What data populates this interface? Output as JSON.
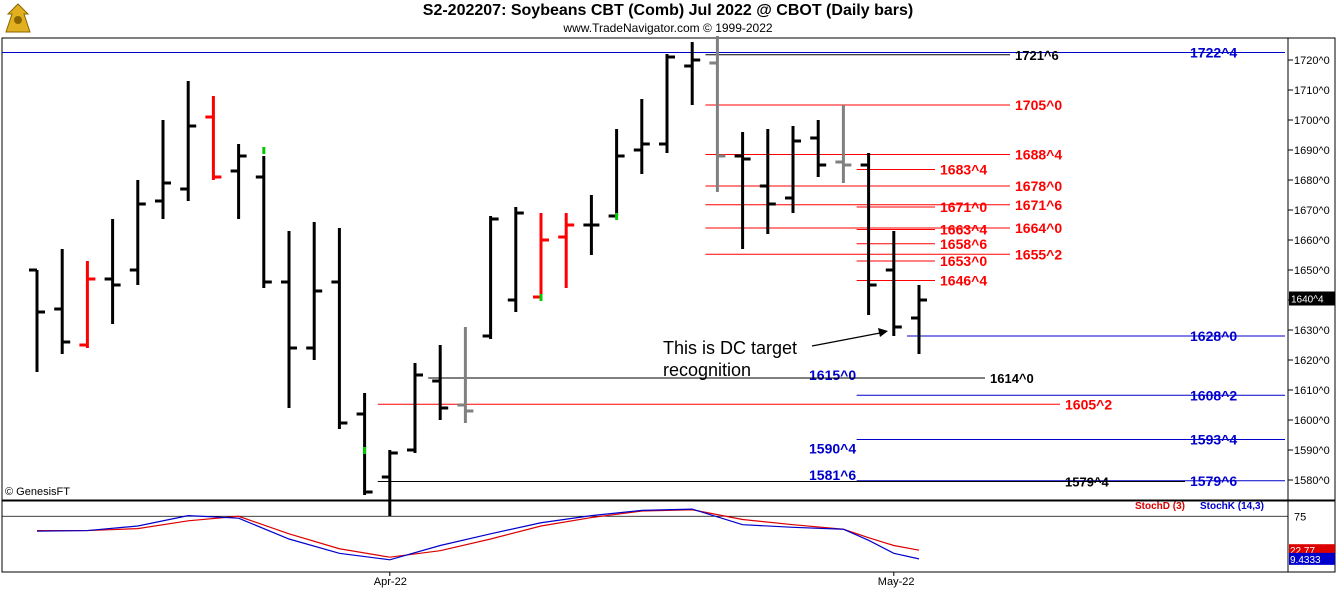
{
  "header": {
    "title": "S2-202207:  Soybeans CBT (Comb) Jul 2022 @ CBOT  (Daily bars)",
    "subtitle": "www.TradeNavigator.com © 1999-2022",
    "logo_icon": "bull-bear-logo-icon"
  },
  "copyright": "© GenesisFT",
  "annotation": {
    "line1": "This is DC target",
    "line2": "recognition"
  },
  "colors": {
    "up": "#000000",
    "down_key": "#ff0000",
    "neutral": "#808080",
    "target_blue": "#0000cc",
    "target_red": "#ff0000",
    "green_tick": "#00cc00",
    "stoch_d": "#dd0000",
    "stoch_k": "#0000cc"
  },
  "chart_data": [
    {
      "type": "ohlc",
      "title": "Soybeans CBT (Comb) Jul 2022 @ CBOT (Daily bars)",
      "y_unit": "cents (quarter-cent notation 1640^4)",
      "ylim": [
        1572,
        1730
      ],
      "y_ticks": [
        "1720^0",
        "1710^0",
        "1700^0",
        "1690^0",
        "1680^0",
        "1670^0",
        "1660^0",
        "1650^0",
        "1640^0",
        "1630^0",
        "1620^0",
        "1610^0",
        "1600^0",
        "1590^0",
        "1580^0"
      ],
      "y_tick_values": [
        1720,
        1710,
        1700,
        1690,
        1680,
        1670,
        1660,
        1650,
        1640,
        1630,
        1620,
        1610,
        1600,
        1590,
        1580
      ],
      "last_price_label": "1640^4",
      "x_labels": [
        "Apr-22",
        "May-22"
      ],
      "x_label_index": [
        14,
        34
      ],
      "bars": [
        {
          "i": 0,
          "h": 1650,
          "l": 1616,
          "o": 1650,
          "c": 1636,
          "color": "black"
        },
        {
          "i": 1,
          "h": 1657,
          "l": 1622,
          "o": 1637,
          "c": 1626,
          "color": "black"
        },
        {
          "i": 2,
          "h": 1653,
          "l": 1624,
          "o": 1625,
          "c": 1647,
          "color": "red"
        },
        {
          "i": 3,
          "h": 1667,
          "l": 1632,
          "o": 1647,
          "c": 1645,
          "color": "black"
        },
        {
          "i": 4,
          "h": 1680,
          "l": 1645,
          "o": 1650,
          "c": 1672,
          "color": "black"
        },
        {
          "i": 5,
          "h": 1700,
          "l": 1667,
          "o": 1673,
          "c": 1679,
          "color": "black"
        },
        {
          "i": 6,
          "h": 1713,
          "l": 1673,
          "o": 1677,
          "c": 1698,
          "color": "black"
        },
        {
          "i": 7,
          "h": 1708,
          "l": 1680,
          "o": 1701,
          "c": 1681,
          "color": "red"
        },
        {
          "i": 8,
          "h": 1692,
          "l": 1667,
          "o": 1683,
          "c": 1688,
          "color": "black"
        },
        {
          "i": 9,
          "h": 1688,
          "l": 1644,
          "o": 1681,
          "c": 1646,
          "color": "black"
        },
        {
          "i": 10,
          "h": 1663,
          "l": 1604,
          "o": 1646,
          "c": 1624,
          "color": "black"
        },
        {
          "i": 11,
          "h": 1666,
          "l": 1620,
          "o": 1624,
          "c": 1643,
          "color": "black"
        },
        {
          "i": 12,
          "h": 1664,
          "l": 1597,
          "o": 1646,
          "c": 1599,
          "color": "black"
        },
        {
          "i": 13,
          "h": 1609,
          "l": 1575,
          "o": 1602,
          "c": 1576,
          "color": "black"
        },
        {
          "i": 14,
          "h": 1590,
          "l": 1568,
          "o": 1581,
          "c": 1589,
          "color": "black"
        },
        {
          "i": 15,
          "h": 1619,
          "l": 1589,
          "o": 1590,
          "c": 1615,
          "color": "black"
        },
        {
          "i": 16,
          "h": 1625,
          "l": 1600,
          "o": 1613,
          "c": 1604,
          "color": "black"
        },
        {
          "i": 17,
          "h": 1631,
          "l": 1599,
          "o": 1605,
          "c": 1603,
          "color": "gray"
        },
        {
          "i": 18,
          "h": 1668,
          "l": 1627,
          "o": 1628,
          "c": 1667,
          "color": "black"
        },
        {
          "i": 19,
          "h": 1671,
          "l": 1636,
          "o": 1640,
          "c": 1669,
          "color": "black"
        },
        {
          "i": 20,
          "h": 1669,
          "l": 1641,
          "o": 1641,
          "c": 1660,
          "color": "red"
        },
        {
          "i": 21,
          "h": 1669,
          "l": 1644,
          "o": 1661,
          "c": 1665,
          "color": "red"
        },
        {
          "i": 22,
          "h": 1675,
          "l": 1655,
          "o": 1665,
          "c": 1665,
          "color": "black"
        },
        {
          "i": 23,
          "h": 1697,
          "l": 1668,
          "o": 1668,
          "c": 1688,
          "color": "black"
        },
        {
          "i": 24,
          "h": 1707,
          "l": 1682,
          "o": 1690,
          "c": 1692,
          "color": "black"
        },
        {
          "i": 25,
          "h": 1722,
          "l": 1689,
          "o": 1692,
          "c": 1721,
          "color": "black"
        },
        {
          "i": 26,
          "h": 1726,
          "l": 1705,
          "o": 1718,
          "c": 1720,
          "color": "black"
        },
        {
          "i": 27,
          "h": 1728,
          "l": 1676,
          "o": 1719,
          "c": 1688,
          "color": "gray"
        },
        {
          "i": 28,
          "h": 1696,
          "l": 1657,
          "o": 1688,
          "c": 1687,
          "color": "black"
        },
        {
          "i": 29,
          "h": 1697,
          "l": 1662,
          "o": 1678,
          "c": 1672,
          "color": "black"
        },
        {
          "i": 30,
          "h": 1698,
          "l": 1669,
          "o": 1674,
          "c": 1693,
          "color": "black"
        },
        {
          "i": 31,
          "h": 1700,
          "l": 1681,
          "o": 1694,
          "c": 1685,
          "color": "black"
        },
        {
          "i": 32,
          "h": 1705,
          "l": 1679,
          "o": 1686,
          "c": 1685,
          "color": "gray"
        },
        {
          "i": 33,
          "h": 1689,
          "l": 1635,
          "o": 1685,
          "c": 1645,
          "color": "black"
        },
        {
          "i": 34,
          "h": 1663,
          "l": 1628,
          "o": 1650,
          "c": 1631,
          "color": "black"
        },
        {
          "i": 35,
          "h": 1645,
          "l": 1622,
          "o": 1634,
          "c": 1640,
          "color": "black"
        }
      ],
      "green_ticks": [
        {
          "i": 9,
          "v": 1690
        },
        {
          "i": 13,
          "v": 1590
        },
        {
          "i": 20,
          "v": 1641
        },
        {
          "i": 23,
          "v": 1668
        }
      ],
      "levels": [
        {
          "label": "1722^4",
          "value": 1722.5,
          "color": "blue",
          "x0": "left",
          "x1": "right",
          "label_pos": "right"
        },
        {
          "label": "1721^6",
          "value": 1721.75,
          "color": "black",
          "x0": 27,
          "x1": "mid",
          "label_pos": "mid"
        },
        {
          "label": "1705^0",
          "value": 1705,
          "color": "red",
          "x0": 27,
          "x1": "mid",
          "label_pos": "mid"
        },
        {
          "label": "1688^4",
          "value": 1688.5,
          "color": "red",
          "x0": 27,
          "x1": "mid",
          "label_pos": "mid"
        },
        {
          "label": "1683^4",
          "value": 1683.5,
          "color": "red",
          "x0": 33,
          "x1": "inner",
          "label_pos": "inner"
        },
        {
          "label": "1678^0",
          "value": 1678,
          "color": "red",
          "x0": 27,
          "x1": "mid",
          "label_pos": "mid"
        },
        {
          "label": "1671^6",
          "value": 1671.75,
          "color": "red",
          "x0": 27,
          "x1": "mid",
          "label_pos": "mid"
        },
        {
          "label": "1671^0",
          "value": 1671,
          "color": "red",
          "x0": 33,
          "x1": "inner",
          "label_pos": "inner"
        },
        {
          "label": "1664^0",
          "value": 1664,
          "color": "red",
          "x0": 27,
          "x1": "mid",
          "label_pos": "mid"
        },
        {
          "label": "1663^4",
          "value": 1663.5,
          "color": "red",
          "x0": 33,
          "x1": "inner",
          "label_pos": "inner"
        },
        {
          "label": "1658^6",
          "value": 1658.75,
          "color": "red",
          "x0": 33,
          "x1": "inner",
          "label_pos": "inner"
        },
        {
          "label": "1655^2",
          "value": 1655.25,
          "color": "red",
          "x0": 27,
          "x1": "mid",
          "label_pos": "mid"
        },
        {
          "label": "1653^0",
          "value": 1653,
          "color": "red",
          "x0": 33,
          "x1": "inner",
          "label_pos": "inner"
        },
        {
          "label": "1646^4",
          "value": 1646.5,
          "color": "red",
          "x0": 33,
          "x1": "inner",
          "label_pos": "inner"
        },
        {
          "label": "1628^0",
          "value": 1628,
          "color": "blue",
          "x0": 35,
          "x1": "right",
          "label_pos": "right"
        },
        {
          "label": "1615^0",
          "value": 1615,
          "color": "blue",
          "x0": null,
          "x1": "right",
          "label_pos": "left"
        },
        {
          "label": "1614^0",
          "value": 1614,
          "color": "black",
          "x0": 16,
          "x1": "inner2",
          "label_pos": "inner2"
        },
        {
          "label": "1608^2",
          "value": 1608.25,
          "color": "blue",
          "x0": 33,
          "x1": "right",
          "label_pos": "right"
        },
        {
          "label": "1605^2",
          "value": 1605.25,
          "color": "red",
          "x0": 14,
          "x1": "inner3",
          "label_pos": "inner3"
        },
        {
          "label": "1593^4",
          "value": 1593.5,
          "color": "blue",
          "x0": 33,
          "x1": "right",
          "label_pos": "right"
        },
        {
          "label": "1590^4",
          "value": 1590.5,
          "color": "blue",
          "x0": null,
          "x1": "right",
          "label_pos": "left"
        },
        {
          "label": "1581^6",
          "value": 1581.75,
          "color": "blue",
          "x0": null,
          "x1": "right",
          "label_pos": "left"
        },
        {
          "label": "1579^6",
          "value": 1579.75,
          "color": "blue",
          "x0": 33,
          "x1": "right",
          "label_pos": "right"
        },
        {
          "label": "1579^4",
          "value": 1579.5,
          "color": "black",
          "x0": 14,
          "x1": "inner4",
          "label_pos": "inner4"
        }
      ]
    },
    {
      "type": "line",
      "title": "Stochastic",
      "legend": [
        "StochD (3)",
        "StochK (14,3)"
      ],
      "y_ticks": [
        "75"
      ],
      "ylim": [
        0,
        100
      ],
      "last_labels": [
        "22.77",
        "9.4333"
      ],
      "x": [
        0,
        2,
        4,
        6,
        8,
        10,
        12,
        14,
        16,
        18,
        20,
        22,
        24,
        26,
        28,
        30,
        32,
        33,
        34,
        35
      ],
      "series": [
        {
          "name": "StochD (3)",
          "values": [
            53,
            53,
            56,
            68,
            75,
            48,
            25,
            12,
            22,
            40,
            60,
            73,
            83,
            85,
            70,
            62,
            55,
            42,
            30,
            22.77
          ]
        },
        {
          "name": "StochK (14,3)",
          "values": [
            52,
            53,
            60,
            76,
            72,
            40,
            18,
            8,
            30,
            48,
            65,
            76,
            84,
            86,
            62,
            58,
            55,
            38,
            18,
            9.4333
          ]
        }
      ]
    }
  ]
}
